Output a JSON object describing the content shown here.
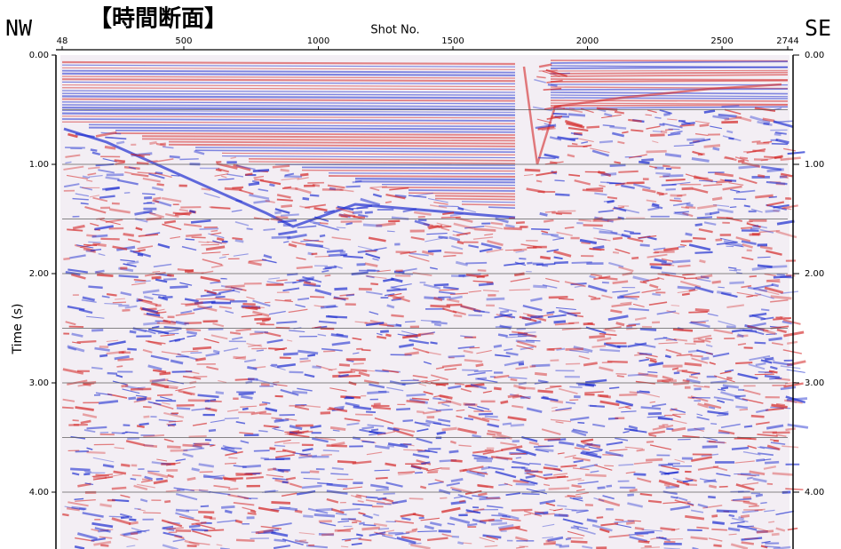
{
  "chart_data": {
    "type": "seismic",
    "title": "【時間断面】",
    "left_label": "NW",
    "right_label": "SE",
    "x_label": "Shot No.",
    "y_label": "Time (s)",
    "xlim": [
      48,
      2744
    ],
    "xticks": [
      48,
      500,
      1000,
      1500,
      2000,
      2500,
      2744
    ],
    "ylim": [
      0,
      4.52
    ],
    "yticks": [
      {
        "value": 0,
        "label": "0.00"
      },
      {
        "value": 1,
        "label": "1.00"
      },
      {
        "value": 2,
        "label": "2.00"
      },
      {
        "value": 3,
        "label": "3.00"
      },
      {
        "value": 4,
        "label": "4.00"
      }
    ],
    "grid_lines": [
      0.5,
      1,
      1.5,
      2,
      2.5,
      3,
      3.5,
      4
    ],
    "colors": [
      "#d42a2a",
      "#1f2fd0"
    ]
  }
}
